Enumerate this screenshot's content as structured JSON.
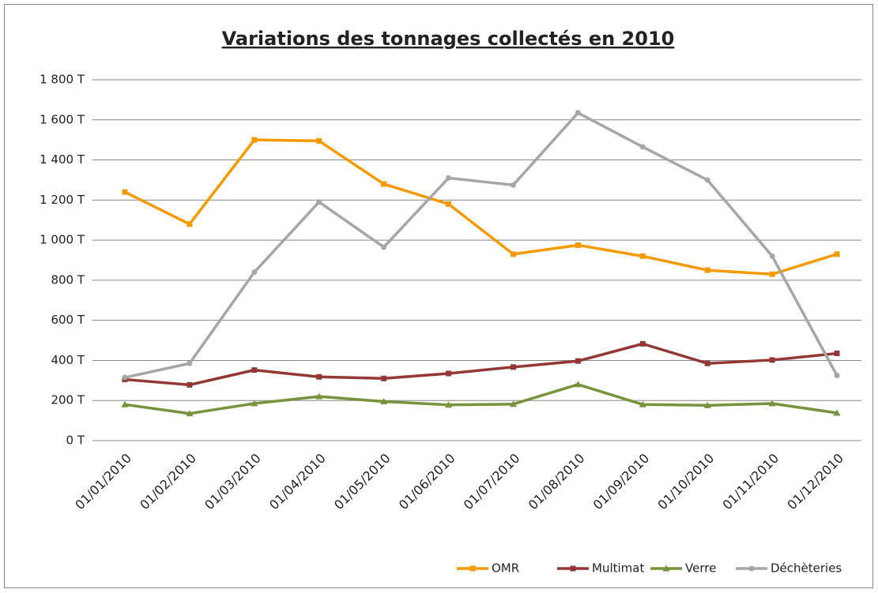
{
  "chart_data": {
    "type": "line",
    "title": "Variations des tonnages collectés en 2010",
    "categories": [
      "01/01/2010",
      "01/02/2010",
      "01/03/2010",
      "01/04/2010",
      "01/05/2010",
      "01/06/2010",
      "01/07/2010",
      "01/08/2010",
      "01/09/2010",
      "01/10/2010",
      "01/11/2010",
      "01/12/2010"
    ],
    "series": [
      {
        "name": "OMR",
        "color": "#f79a00",
        "marker": "square",
        "values": [
          1240,
          1080,
          1500,
          1495,
          1280,
          1180,
          930,
          975,
          920,
          850,
          830,
          930
        ]
      },
      {
        "name": "Multimat",
        "color": "#953735",
        "marker": "square",
        "values": [
          305,
          278,
          352,
          318,
          310,
          335,
          367,
          397,
          483,
          385,
          402,
          435
        ]
      },
      {
        "name": "Verre",
        "color": "#77933c",
        "marker": "triangle",
        "values": [
          180,
          135,
          185,
          220,
          195,
          178,
          182,
          280,
          180,
          176,
          185,
          138
        ]
      },
      {
        "name": "Déchèteries",
        "color": "#a6a6a6",
        "marker": "circle",
        "values": [
          315,
          385,
          840,
          1190,
          965,
          1310,
          1275,
          1635,
          1465,
          1300,
          920,
          325
        ]
      }
    ],
    "ylim": [
      0,
      1800
    ],
    "yticks": [
      {
        "value": 0,
        "label": "0 T"
      },
      {
        "value": 200,
        "label": "200 T"
      },
      {
        "value": 400,
        "label": "400 T"
      },
      {
        "value": 600,
        "label": "600 T"
      },
      {
        "value": 800,
        "label": "800 T"
      },
      {
        "value": 1000,
        "label": "1 000 T"
      },
      {
        "value": 1200,
        "label": "1 200 T"
      },
      {
        "value": 1400,
        "label": "1 400 T"
      },
      {
        "value": 1600,
        "label": "1 600 T"
      },
      {
        "value": 1800,
        "label": "1 800 T"
      }
    ],
    "grid": true,
    "legend": "bottom"
  }
}
